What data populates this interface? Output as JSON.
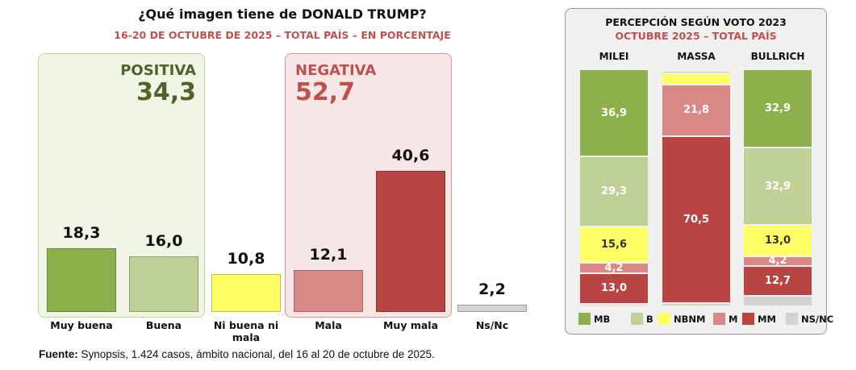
{
  "chart_data": [
    {
      "type": "bar",
      "title": "¿Qué imagen tiene de DONALD TRUMP?",
      "subtitle": "16-20 DE OCTUBRE DE 2025 – TOTAL PAÍS – EN PORCENTAJE",
      "categories": [
        "Muy buena",
        "Buena",
        "Ni buena ni mala",
        "Mala",
        "Muy mala",
        "Ns/Nc"
      ],
      "values": [
        18.3,
        16.0,
        10.8,
        12.1,
        40.6,
        2.2
      ],
      "value_labels": [
        "18,3",
        "16,0",
        "10,8",
        "12,1",
        "40,6",
        "2,2"
      ],
      "colors": [
        "#8db04c",
        "#bfd196",
        "#ffff66",
        "#d98887",
        "#b84444",
        "#d3d3d3"
      ],
      "groups": [
        {
          "label": "POSITIVA",
          "value": "34,3",
          "color": "#4f6228"
        },
        {
          "label": "NEGATIVA",
          "value": "52,7",
          "color": "#c0504d"
        }
      ],
      "ylim": [
        0,
        45
      ]
    },
    {
      "type": "bar",
      "stacked": true,
      "title": "PERCEPCIÓN SEGÚN VOTO 2023",
      "subtitle": "OCTUBRE 2025 – TOTAL PAÍS",
      "categories": [
        "MILEI",
        "MASSA",
        "BULLRICH"
      ],
      "series": [
        {
          "name": "MB",
          "color": "#8db04c",
          "text": "#fff",
          "values": [
            36.9,
            0.8,
            32.9
          ],
          "labels": [
            "36,9",
            "",
            "32,9"
          ]
        },
        {
          "name": "B",
          "color": "#bfd196",
          "text": "#fff",
          "values": [
            29.3,
            1.0,
            32.9
          ],
          "labels": [
            "29,3",
            "",
            "32,9"
          ]
        },
        {
          "name": "NBNM",
          "color": "#ffff66",
          "text": "#333",
          "values": [
            15.6,
            4.6,
            13.0
          ],
          "labels": [
            "15,6",
            "",
            "13,0"
          ]
        },
        {
          "name": "M",
          "color": "#d98887",
          "text": "#fff",
          "values": [
            4.2,
            21.8,
            4.2
          ],
          "labels": [
            "4,2",
            "21,8",
            "4,2"
          ]
        },
        {
          "name": "MM",
          "color": "#b84444",
          "text": "#fff",
          "values": [
            13.0,
            70.5,
            12.7
          ],
          "labels": [
            "13,0",
            "70,5",
            "12,7"
          ]
        },
        {
          "name": "NS/NC",
          "color": "#d3d3d3",
          "text": "#333",
          "values": [
            1.0,
            1.3,
            4.3
          ],
          "labels": [
            "",
            "",
            ""
          ]
        }
      ],
      "ylim": [
        0,
        100
      ]
    }
  ],
  "source": {
    "label": "Fuente:",
    "text": " Synopsis, 1.424 casos, ámbito nacional, del 16 al 20 de octubre de 2025."
  }
}
